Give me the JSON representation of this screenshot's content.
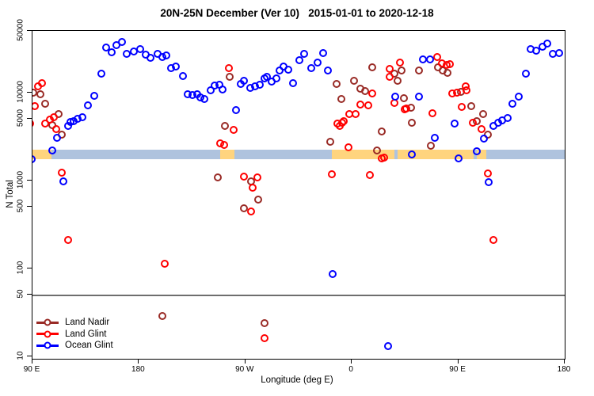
{
  "title": "20N-25N December (Ver 10)   2015-01-01 to 2020-12-18",
  "legend": {
    "items": [
      {
        "label": "Land Nadir",
        "color": "#992B26"
      },
      {
        "label": "Land Glint",
        "color": "#FF0000"
      },
      {
        "label": "Ocean Glint",
        "color": "#0000FF"
      }
    ]
  },
  "chart_data": {
    "type": "scatter",
    "title": "20N-25N December (Ver 10)   2015-01-01 to 2020-12-18",
    "xlabel": "Longitude (deg E)",
    "ylabel": "N Total",
    "x_scale": "linear",
    "y_scale": "log",
    "xlim": [
      90,
      540
    ],
    "ylim": [
      10,
      50500
    ],
    "x_ticks": [
      {
        "lon": 90,
        "label": "90 E"
      },
      {
        "lon": 180,
        "label": "180"
      },
      {
        "lon": 270,
        "label": "90 W"
      },
      {
        "lon": 360,
        "label": "0"
      },
      {
        "lon": 450,
        "label": "90 E"
      },
      {
        "lon": 540,
        "label": "180"
      }
    ],
    "y_ticks": [
      {
        "value": 10,
        "label": "10"
      },
      {
        "value": 50,
        "label": "50"
      },
      {
        "value": 100,
        "label": "100"
      },
      {
        "value": 500,
        "label": "500"
      },
      {
        "value": 1000,
        "label": "1000"
      },
      {
        "value": 5000,
        "label": "5000"
      },
      {
        "value": 10000,
        "label": "10000"
      },
      {
        "value": 50000,
        "label": "50000"
      }
    ],
    "reference_line_y": 50,
    "map_band": {
      "description": "coastline strip showing land/ocean along 20N-25N",
      "ocean_color": "#AFC3DE",
      "land_color": "#FFD47E",
      "y_value_range": [
        1760,
        2250
      ],
      "land_segments_lon": [
        [
          90,
          106
        ],
        [
          249,
          261
        ],
        [
          343,
          396
        ],
        [
          399,
          463
        ],
        [
          466,
          474
        ]
      ]
    },
    "series": [
      {
        "name": "Land Nadir",
        "color": "#992B26",
        "points": [
          [
            91,
            10000
          ],
          [
            97,
            9600
          ],
          [
            101,
            7500
          ],
          [
            107,
            4270
          ],
          [
            112,
            5700
          ],
          [
            115,
            3340
          ],
          [
            200,
            29
          ],
          [
            247,
            1090
          ],
          [
            253,
            4200
          ],
          [
            257,
            15100
          ],
          [
            269,
            485
          ],
          [
            275,
            980
          ],
          [
            281,
            610
          ],
          [
            286,
            24
          ],
          [
            342,
            2760
          ],
          [
            347,
            12600
          ],
          [
            351,
            8500
          ],
          [
            362,
            13650
          ],
          [
            367,
            11100
          ],
          [
            371,
            10400
          ],
          [
            377,
            19400
          ],
          [
            381,
            2200
          ],
          [
            385,
            3600
          ],
          [
            396,
            16500
          ],
          [
            399,
            13650
          ],
          [
            402,
            17900
          ],
          [
            404,
            8650
          ],
          [
            410,
            6750
          ],
          [
            411,
            4500
          ],
          [
            417,
            17900
          ],
          [
            427,
            2500
          ],
          [
            433,
            19400
          ],
          [
            437,
            17900
          ],
          [
            441,
            16900
          ],
          [
            452,
            10200
          ],
          [
            461,
            7000
          ],
          [
            466,
            4750
          ],
          [
            471,
            5700
          ],
          [
            475,
            3300
          ]
        ]
      },
      {
        "name": "Land Glint",
        "color": "#FF0000",
        "points": [
          [
            88,
            4450
          ],
          [
            92,
            7000
          ],
          [
            95,
            11800
          ],
          [
            98,
            12800
          ],
          [
            101,
            4450
          ],
          [
            105,
            4950
          ],
          [
            108,
            5250
          ],
          [
            110,
            3850
          ],
          [
            115,
            1230
          ],
          [
            120,
            210
          ],
          [
            202,
            113
          ],
          [
            249,
            2650
          ],
          [
            252,
            2550
          ],
          [
            256,
            19000
          ],
          [
            260,
            3770
          ],
          [
            269,
            1110
          ],
          [
            275,
            445
          ],
          [
            276,
            830
          ],
          [
            280,
            1090
          ],
          [
            286,
            16
          ],
          [
            343,
            1180
          ],
          [
            348,
            4450
          ],
          [
            350,
            4200
          ],
          [
            352,
            4550
          ],
          [
            353,
            4750
          ],
          [
            357,
            2390
          ],
          [
            358,
            5700
          ],
          [
            363,
            5700
          ],
          [
            367,
            7300
          ],
          [
            374,
            7150
          ],
          [
            375,
            1160
          ],
          [
            377,
            9800
          ],
          [
            385,
            1790
          ],
          [
            387,
            1830
          ],
          [
            392,
            18600
          ],
          [
            392,
            15100
          ],
          [
            396,
            7650
          ],
          [
            401,
            22000
          ],
          [
            405,
            6500
          ],
          [
            406,
            6600
          ],
          [
            428,
            5850
          ],
          [
            432,
            25500
          ],
          [
            436,
            21500
          ],
          [
            440,
            20700
          ],
          [
            443,
            21000
          ],
          [
            445,
            9800
          ],
          [
            449,
            10000
          ],
          [
            453,
            6900
          ],
          [
            456,
            11850
          ],
          [
            457,
            10700
          ],
          [
            462,
            4550
          ],
          [
            470,
            3850
          ],
          [
            475,
            1200
          ],
          [
            480,
            210
          ]
        ]
      },
      {
        "name": "Ocean Glint",
        "color": "#0000FF",
        "points": [
          [
            89,
            1750
          ],
          [
            107,
            2200
          ],
          [
            111,
            3050
          ],
          [
            116,
            980
          ],
          [
            120,
            4200
          ],
          [
            122,
            4650
          ],
          [
            125,
            4750
          ],
          [
            128,
            5050
          ],
          [
            132,
            5250
          ],
          [
            137,
            7200
          ],
          [
            142,
            9200
          ],
          [
            148,
            16500
          ],
          [
            152,
            32500
          ],
          [
            157,
            29000
          ],
          [
            161,
            35000
          ],
          [
            166,
            38000
          ],
          [
            170,
            27500
          ],
          [
            176,
            29500
          ],
          [
            181,
            31000
          ],
          [
            186,
            27000
          ],
          [
            190,
            25000
          ],
          [
            196,
            27500
          ],
          [
            200,
            25500
          ],
          [
            203,
            26500
          ],
          [
            207,
            19000
          ],
          [
            211,
            20000
          ],
          [
            217,
            15500
          ],
          [
            221,
            9600
          ],
          [
            225,
            9400
          ],
          [
            229,
            9600
          ],
          [
            232,
            8800
          ],
          [
            235,
            8500
          ],
          [
            241,
            10600
          ],
          [
            244,
            12000
          ],
          [
            248,
            12300
          ],
          [
            251,
            10900
          ],
          [
            262,
            6300
          ],
          [
            266,
            12600
          ],
          [
            269,
            13600
          ],
          [
            274,
            11300
          ],
          [
            278,
            11800
          ],
          [
            282,
            12300
          ],
          [
            286,
            14500
          ],
          [
            288,
            15100
          ],
          [
            292,
            13400
          ],
          [
            296,
            14500
          ],
          [
            299,
            17900
          ],
          [
            302,
            19800
          ],
          [
            306,
            18200
          ],
          [
            310,
            12800
          ],
          [
            316,
            23400
          ],
          [
            320,
            27600
          ],
          [
            326,
            19000
          ],
          [
            331,
            22000
          ],
          [
            336,
            28200
          ],
          [
            340,
            17900
          ],
          [
            344,
            87
          ],
          [
            391,
            13
          ],
          [
            397,
            9000
          ],
          [
            411,
            2000
          ],
          [
            417,
            9000
          ],
          [
            420,
            24000
          ],
          [
            426,
            24000
          ],
          [
            430,
            3050
          ],
          [
            447,
            4450
          ],
          [
            450,
            1800
          ],
          [
            466,
            2150
          ],
          [
            472,
            3000
          ],
          [
            476,
            960
          ],
          [
            480,
            4200
          ],
          [
            484,
            4550
          ],
          [
            487,
            4850
          ],
          [
            492,
            5150
          ],
          [
            496,
            7450
          ],
          [
            501,
            9000
          ],
          [
            507,
            16500
          ],
          [
            511,
            31000
          ],
          [
            516,
            30000
          ],
          [
            521,
            33500
          ],
          [
            525,
            36000
          ],
          [
            530,
            27500
          ],
          [
            535,
            28000
          ]
        ]
      }
    ]
  }
}
